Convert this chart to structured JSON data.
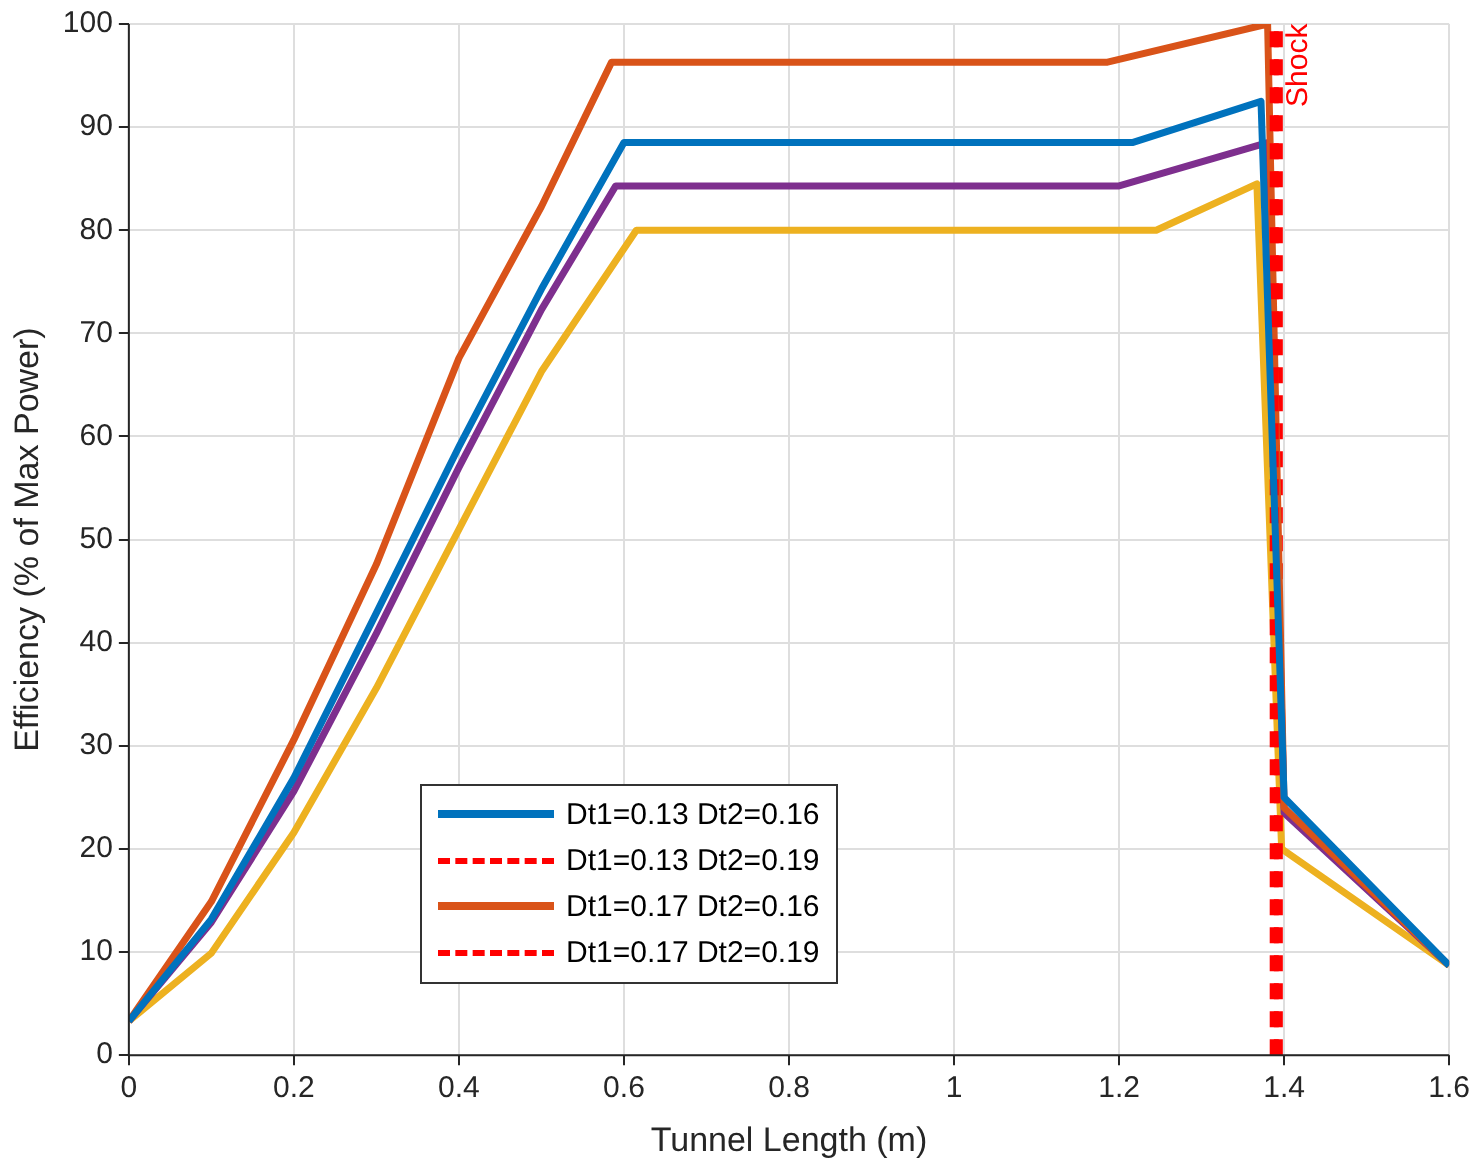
{
  "chart_data": {
    "type": "line",
    "xlabel": "Tunnel Length (m)",
    "ylabel": "Efficiency (% of Max Power)",
    "xlim": [
      0,
      1.6
    ],
    "xticks": [
      0,
      0.2,
      0.4,
      0.6,
      0.8,
      1,
      1.2,
      1.4,
      1.6
    ],
    "ylim": [
      0,
      100
    ],
    "yticks": [
      0,
      10,
      20,
      30,
      40,
      50,
      60,
      70,
      80,
      90,
      100
    ],
    "grid": true,
    "legend": "bottom",
    "line_style": "solid",
    "series": [
      {
        "name": "Dt1=0.13 Dt2=0.16",
        "color": "#0072bd",
        "x": [
          0,
          0.1,
          0.2,
          0.3,
          0.4,
          0.5,
          0.6,
          1.216,
          1.372,
          1.4,
          1.6
        ],
        "values": [
          3.3,
          13.2,
          26.9,
          42.9,
          59,
          74.3,
          88.5,
          88.5,
          92.5,
          25,
          8.7
        ]
      },
      {
        "name": "Dt1=0.13 Dt2=0.19",
        "color": "#ff0000",
        "line_style": "dashed",
        "x": [
          1.388,
          1.388
        ],
        "values": [
          0,
          100
        ]
      },
      {
        "name": "Dt1=0.17 Dt2=0.16",
        "color": "#d95319",
        "x": [
          0,
          0.1,
          0.2,
          0.3,
          0.4,
          0.5,
          0.585,
          1.186,
          1.38,
          1.4,
          1.6
        ],
        "values": [
          3.3,
          14.9,
          30.6,
          47.6,
          67.6,
          82.3,
          96.3,
          96.3,
          100,
          24,
          8.7
        ]
      },
      {
        "name": "Dt1=0.17 Dt2=0.19",
        "color": "#ff0000",
        "line_style": "dashed",
        "x": [
          1.393,
          1.393
        ],
        "values": [
          0,
          100
        ]
      },
      {
        "color": "#7e2f8e",
        "x": [
          0,
          0.1,
          0.2,
          0.3,
          0.4,
          0.5,
          0.59,
          1.2,
          1.38,
          1.4,
          1.6
        ],
        "values": [
          3.3,
          12.9,
          25.6,
          40.9,
          57,
          72.3,
          84.3,
          84.3,
          88.5,
          23.5,
          8.7
        ]
      },
      {
        "color": "#edb120",
        "x": [
          0,
          0.1,
          0.2,
          0.3,
          0.4,
          0.5,
          0.615,
          1.245,
          1.367,
          1.397,
          1.6
        ],
        "values": [
          3.3,
          9.9,
          21.6,
          35.6,
          51,
          66.3,
          80,
          80,
          84.5,
          20,
          8.7
        ]
      }
    ],
    "annotations": [
      {
        "text": "Shock",
        "x": 1.393,
        "y": 96
      }
    ]
  }
}
